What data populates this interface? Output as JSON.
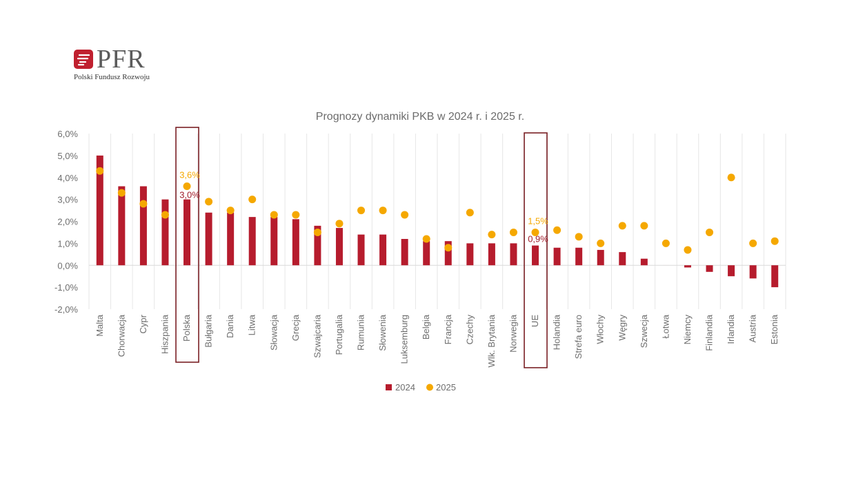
{
  "brand": {
    "name": "PFR",
    "tagline": "Polski Fundusz Rozwoju",
    "color": "#c0202f"
  },
  "colors": {
    "bar_2024": "#b61c2d",
    "dot_2025": "#f5a800",
    "highlight_box": "#7a1f24",
    "label_2025": "#f5a800",
    "label_2024": "#a01c2a"
  },
  "chart_data": {
    "type": "bar",
    "title": "Prognozy dynamiki PKB w 2024 r. i 2025 r.",
    "xlabel": "",
    "ylabel": "",
    "ylim": [
      -2.0,
      6.0
    ],
    "y_ticks": [
      "6,0%",
      "5,0%",
      "4,0%",
      "3,0%",
      "2,0%",
      "1,0%",
      "0,0%",
      "-1,0%",
      "-2,0%"
    ],
    "y_tick_values": [
      6,
      5,
      4,
      3,
      2,
      1,
      0,
      -1,
      -2
    ],
    "grid": "vertical",
    "legend_position": "bottom",
    "categories": [
      "Malta",
      "Chorwacja",
      "Cypr",
      "Hiszpania",
      "Polska",
      "Bułgaria",
      "Dania",
      "Litwa",
      "Słowacja",
      "Grecja",
      "Szwajcaria",
      "Portugalia",
      "Rumunia",
      "Słowenia",
      "Luksemburg",
      "Belgia",
      "Francja",
      "Czechy",
      "Wlk. Brytania",
      "Norwegia",
      "UE",
      "Holandia",
      "Strefa euro",
      "Włochy",
      "Węgry",
      "Szwecja",
      "Łotwa",
      "Niemcy",
      "Finlandia",
      "Irlandia",
      "Austria",
      "Estonia"
    ],
    "series": [
      {
        "name": "2024",
        "kind": "bar",
        "values": [
          5.0,
          3.6,
          3.6,
          3.0,
          3.0,
          2.4,
          2.4,
          2.2,
          2.2,
          2.1,
          1.8,
          1.7,
          1.4,
          1.4,
          1.2,
          1.1,
          1.1,
          1.0,
          1.0,
          1.0,
          0.9,
          0.8,
          0.8,
          0.7,
          0.6,
          0.3,
          0.0,
          -0.1,
          -0.3,
          -0.5,
          -0.6,
          -1.0
        ]
      },
      {
        "name": "2025",
        "kind": "dot",
        "values": [
          4.3,
          3.3,
          2.8,
          2.3,
          3.6,
          2.9,
          2.5,
          3.0,
          2.3,
          2.3,
          1.5,
          1.9,
          2.5,
          2.5,
          2.3,
          1.2,
          0.8,
          2.4,
          1.4,
          1.5,
          1.5,
          1.6,
          1.3,
          1.0,
          1.8,
          1.8,
          1.0,
          0.7,
          1.5,
          4.0,
          1.0,
          1.1
        ]
      }
    ],
    "highlights": [
      "Polska",
      "UE"
    ],
    "annotations": [
      {
        "category": "Polska",
        "series": "2025",
        "text": "3,6%"
      },
      {
        "category": "Polska",
        "series": "2024",
        "text": "3,0%"
      },
      {
        "category": "UE",
        "series": "2025",
        "text": "1,5%"
      },
      {
        "category": "UE",
        "series": "2024",
        "text": "0,9%"
      }
    ]
  }
}
